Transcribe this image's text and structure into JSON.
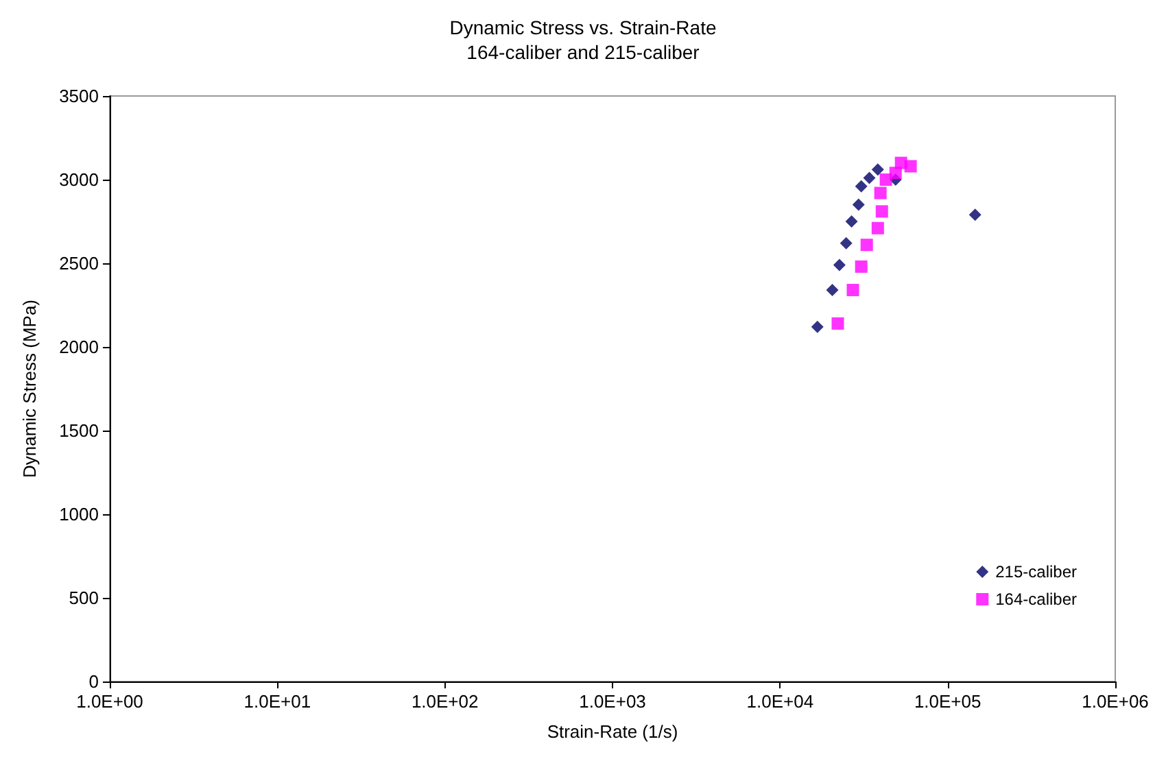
{
  "chart_data": {
    "type": "scatter",
    "title": "Dynamic Stress vs. Strain-Rate",
    "subtitle": "164-caliber and 215-caliber",
    "xlabel": "Strain-Rate (1/s)",
    "ylabel": "Dynamic Stress (MPa)",
    "log": "x",
    "xlim": [
      1,
      1000000
    ],
    "xticks": [
      {
        "value": 1,
        "label": "1.0E+00"
      },
      {
        "value": 10,
        "label": "1.0E+01"
      },
      {
        "value": 100,
        "label": "1.0E+02"
      },
      {
        "value": 1000,
        "label": "1.0E+03"
      },
      {
        "value": 10000,
        "label": "1.0E+04"
      },
      {
        "value": 100000,
        "label": "1.0E+05"
      },
      {
        "value": 1000000,
        "label": "1.0E+06"
      }
    ],
    "ylim": [
      0,
      3500
    ],
    "yticks": [
      0,
      500,
      1000,
      1500,
      2000,
      2500,
      3000,
      3500
    ],
    "grid": false,
    "legend": "bottom right",
    "series": [
      {
        "name": "215-caliber",
        "color": "#000066",
        "marker": "diamond",
        "x": [
          16700,
          20500,
          22600,
          24800,
          26700,
          29400,
          30500,
          34100,
          38300,
          48900,
          145800
        ],
        "values": [
          2120,
          2340,
          2490,
          2620,
          2750,
          2850,
          2960,
          3010,
          3060,
          3000,
          2790
        ]
      },
      {
        "name": "164-caliber",
        "color": "#ff00ff",
        "marker": "square",
        "x": [
          22100,
          27200,
          30500,
          32900,
          38300,
          40500,
          39700,
          42800,
          48900,
          52700,
          60100
        ],
        "values": [
          2140,
          2340,
          2480,
          2610,
          2710,
          2810,
          2920,
          3000,
          3040,
          3100,
          3080
        ]
      }
    ]
  }
}
